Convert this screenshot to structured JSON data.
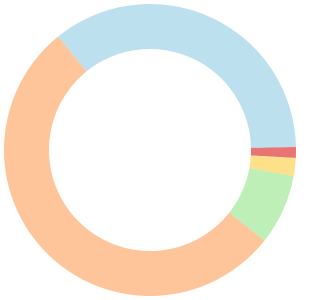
{
  "chart_data": {
    "type": "donut",
    "values": [
      35.5,
      1.2,
      2,
      7.8,
      53.5
    ],
    "colors": [
      "#bde0ee",
      "#e87474",
      "#fde08a",
      "#bdefb6",
      "#ffc59a"
    ]
  }
}
